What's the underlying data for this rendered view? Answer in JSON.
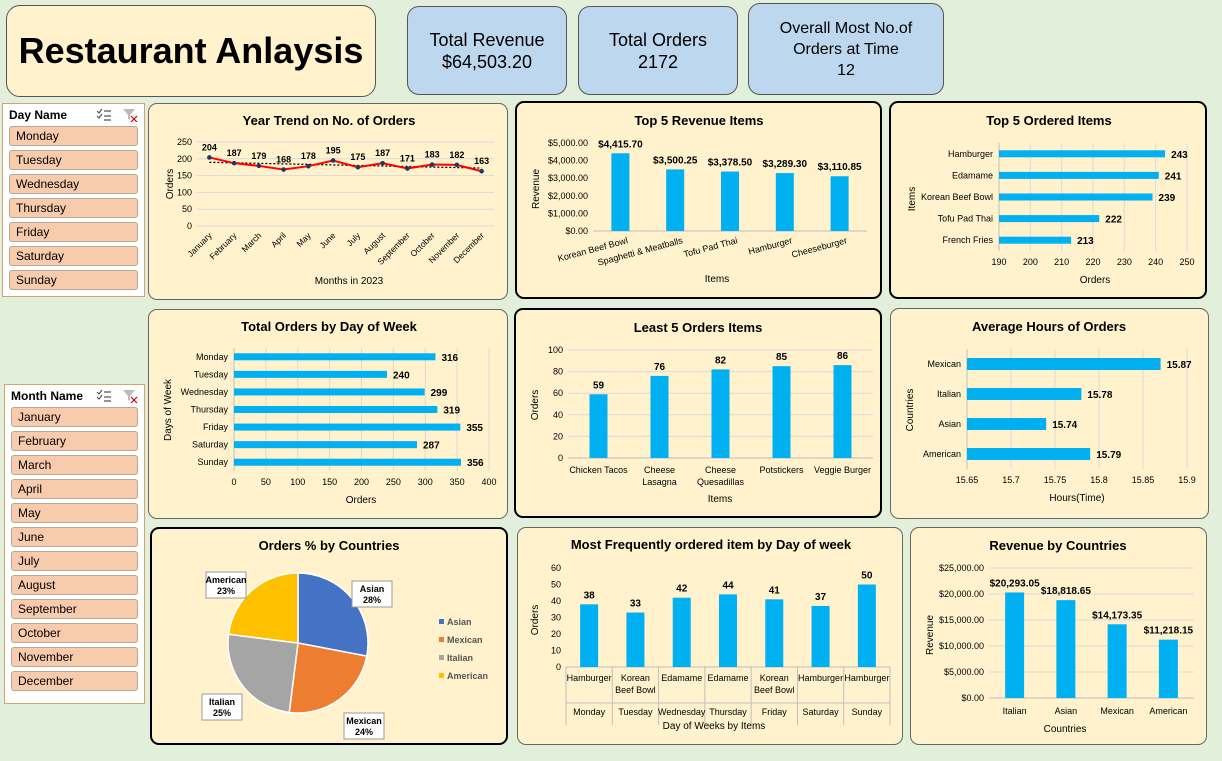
{
  "title": "Restaurant Anlaysis",
  "kpis": {
    "revenue": {
      "label": "Total Revenue",
      "value": "$64,503.20"
    },
    "orders": {
      "label": "Total Orders",
      "value": "2172"
    },
    "peak": {
      "label1": "Overall Most No.of",
      "label2": "Orders at Time",
      "value": "12"
    }
  },
  "day_slicer": {
    "header": "Day Name",
    "items": [
      "Monday",
      "Tuesday",
      "Wednesday",
      "Thursday",
      "Friday",
      "Saturday",
      "Sunday"
    ]
  },
  "month_slicer": {
    "header": "Month Name",
    "items": [
      "January",
      "February",
      "March",
      "April",
      "May",
      "June",
      "July",
      "August",
      "September",
      "October",
      "November",
      "December"
    ]
  },
  "icons": {
    "multi_select": "multi-select-icon",
    "clear_filter": "clear-filter-icon"
  },
  "colors": {
    "bar": "#00b0f0",
    "line": "#ff0000",
    "asian": "#4472c4",
    "mexican": "#ed7d31",
    "italian": "#a5a5a5",
    "american": "#ffc000"
  },
  "chart_data": [
    {
      "id": "year_trend",
      "type": "line",
      "title": "Year Trend on No. of Orders",
      "categories": [
        "January",
        "February",
        "March",
        "April",
        "May",
        "June",
        "July",
        "August",
        "September",
        "October",
        "November",
        "December"
      ],
      "values": [
        204,
        187,
        179,
        168,
        178,
        195,
        175,
        187,
        171,
        183,
        182,
        163
      ],
      "ylim": [
        0,
        250
      ],
      "yticks": [
        0,
        50,
        100,
        150,
        200,
        250
      ],
      "xlabel": "Months in 2023",
      "ylabel": "Orders",
      "trendline": true
    },
    {
      "id": "top_revenue",
      "type": "bar",
      "title": "Top 5 Revenue Items",
      "categories": [
        "Korean Beef Bowl",
        "Spaghetti & Meatballs",
        "Tofu Pad Thai",
        "Hamburger",
        "Cheeseburger"
      ],
      "values": [
        4415.7,
        3500.25,
        3378.5,
        3289.3,
        3110.85
      ],
      "labels": [
        "$4,415.70",
        "$3,500.25",
        "$3,378.50",
        "$3,289.30",
        "$3,110.85"
      ],
      "ylim": [
        0,
        5000
      ],
      "yticks": [
        "$0.00",
        "$1,000.00",
        "$2,000.00",
        "$3,000.00",
        "$4,000.00",
        "$5,000.00"
      ],
      "xlabel": "Items",
      "ylabel": "Revenue"
    },
    {
      "id": "top_ordered",
      "type": "bar",
      "orientation": "horizontal",
      "title": "Top 5 Ordered Items",
      "categories": [
        "Hamburger",
        "Edamame",
        "Korean Beef Bowl",
        "Tofu Pad Thai",
        "French Fries"
      ],
      "values": [
        243,
        241,
        239,
        222,
        213
      ],
      "xlim": [
        190,
        250
      ],
      "xticks": [
        190,
        200,
        210,
        220,
        230,
        240,
        250
      ],
      "xlabel": "Orders",
      "ylabel": "Items"
    },
    {
      "id": "orders_by_day",
      "type": "bar",
      "orientation": "horizontal",
      "title": "Total Orders by Day of Week",
      "categories": [
        "Monday",
        "Tuesday",
        "Wednesday",
        "Thursday",
        "Friday",
        "Saturday",
        "Sunday"
      ],
      "values": [
        316,
        240,
        299,
        319,
        355,
        287,
        356
      ],
      "xlim": [
        0,
        400
      ],
      "xticks": [
        0,
        50,
        100,
        150,
        200,
        250,
        300,
        350,
        400
      ],
      "xlabel": "Orders",
      "ylabel": "Days of Week"
    },
    {
      "id": "least_orders",
      "type": "bar",
      "title": "Least 5 Orders Items",
      "categories": [
        "Chicken Tacos",
        "Cheese Lasagna",
        "Cheese Quesadillas",
        "Potstickers",
        "Veggie Burger"
      ],
      "category_lines": [
        [
          "Chicken Tacos"
        ],
        [
          "Cheese",
          "Lasagna"
        ],
        [
          "Cheese",
          "Quesadillas"
        ],
        [
          "Potstickers"
        ],
        [
          "Veggie Burger"
        ]
      ],
      "values": [
        59,
        76,
        82,
        85,
        86
      ],
      "ylim": [
        0,
        100
      ],
      "yticks": [
        0,
        20,
        40,
        60,
        80,
        100
      ],
      "xlabel": "Items",
      "ylabel": "Orders"
    },
    {
      "id": "avg_hours",
      "type": "bar",
      "orientation": "horizontal",
      "title": "Average Hours of Orders",
      "categories": [
        "Mexican",
        "Italian",
        "Asian",
        "American"
      ],
      "values": [
        15.87,
        15.78,
        15.74,
        15.79
      ],
      "xlim": [
        15.65,
        15.9
      ],
      "xticks": [
        "15.65",
        "15.7",
        "15.75",
        "15.8",
        "15.85",
        "15.9"
      ],
      "xlabel": "Hours(Time)",
      "ylabel": "Countries"
    },
    {
      "id": "country_pct",
      "type": "pie",
      "title": "Orders % by Countries",
      "slices": [
        {
          "name": "Asian",
          "value": 28,
          "label": "28%"
        },
        {
          "name": "Mexican",
          "value": 24,
          "label": "24%"
        },
        {
          "name": "Italian",
          "value": 25,
          "label": "25%"
        },
        {
          "name": "American",
          "value": 23,
          "label": "23%"
        }
      ],
      "legend": "right"
    },
    {
      "id": "freq_item_day",
      "type": "bar",
      "title": "Most Frequently ordered item by Day of week",
      "items": [
        [
          "Hamburger"
        ],
        [
          "Korean",
          "Beef Bowl"
        ],
        [
          "Edamame"
        ],
        [
          "Edamame"
        ],
        [
          "Korean",
          "Beef Bowl"
        ],
        [
          "Hamburger"
        ],
        [
          "Hamburger"
        ]
      ],
      "days": [
        "Monday",
        "Tuesday",
        "Wednesday",
        "Thursday",
        "Friday",
        "Saturday",
        "Sunday"
      ],
      "values": [
        38,
        33,
        42,
        44,
        41,
        37,
        50
      ],
      "ylim": [
        0,
        60
      ],
      "yticks": [
        0,
        10,
        20,
        30,
        40,
        50,
        60
      ],
      "xlabel": "Day of Weeks by Items",
      "ylabel": "Orders"
    },
    {
      "id": "country_revenue",
      "type": "bar",
      "title": "Revenue by Countries",
      "categories": [
        "Italian",
        "Asian",
        "Mexican",
        "American"
      ],
      "values": [
        20293.05,
        18818.65,
        14173.35,
        11218.15
      ],
      "labels": [
        "$20,293.05",
        "$18,818.65",
        "$14,173.35",
        "$11,218.15"
      ],
      "ylim": [
        0,
        25000
      ],
      "yticks": [
        "$0.00",
        "$5,000.00",
        "$10,000.00",
        "$15,000.00",
        "$20,000.00",
        "$25,000.00"
      ],
      "xlabel": "Countries",
      "ylabel": "Revenue"
    }
  ]
}
